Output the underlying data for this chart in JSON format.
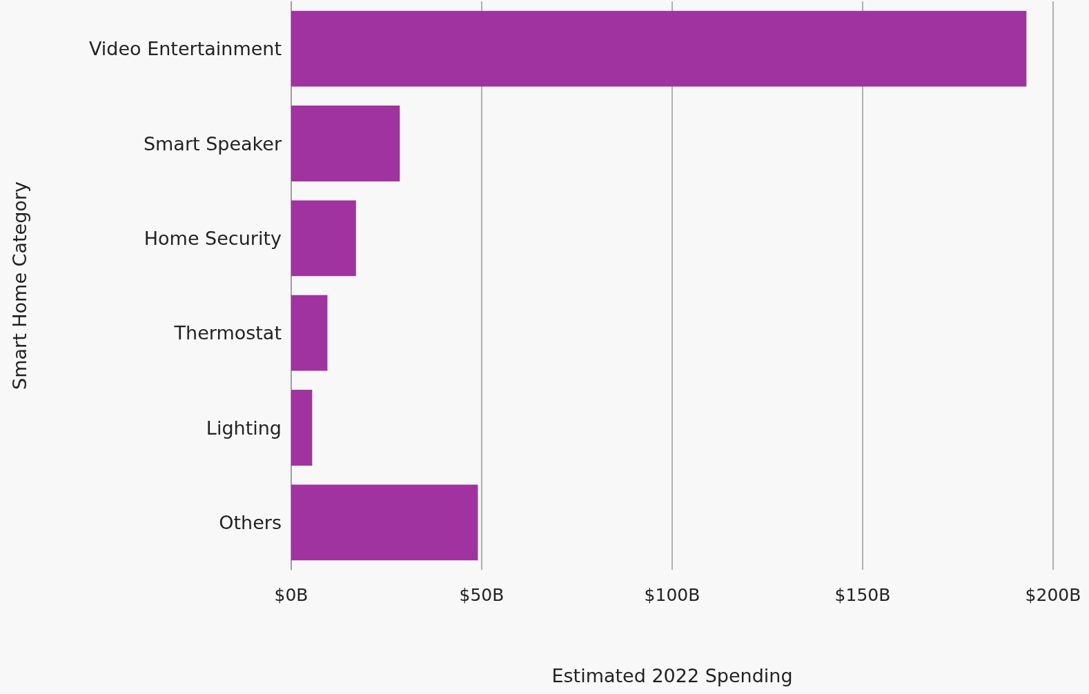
{
  "chart_data": {
    "type": "bar",
    "orientation": "horizontal",
    "xlabel": "Estimated 2022 Spending",
    "ylabel": "Smart Home Category",
    "categories": [
      "Video Entertainment",
      "Smart Speaker",
      "Home Security",
      "Thermostat",
      "Lighting",
      "Others"
    ],
    "values": [
      193,
      28.5,
      17,
      9.5,
      5.5,
      49
    ],
    "color": "#a033a0",
    "xlim": [
      0,
      200
    ],
    "xticks": [
      {
        "value": 0,
        "label": "$0B"
      },
      {
        "value": 50,
        "label": "$50B"
      },
      {
        "value": 100,
        "label": "$100B"
      },
      {
        "value": 150,
        "label": "$150B"
      },
      {
        "value": 200,
        "label": "$200B"
      }
    ],
    "grid": "x"
  }
}
